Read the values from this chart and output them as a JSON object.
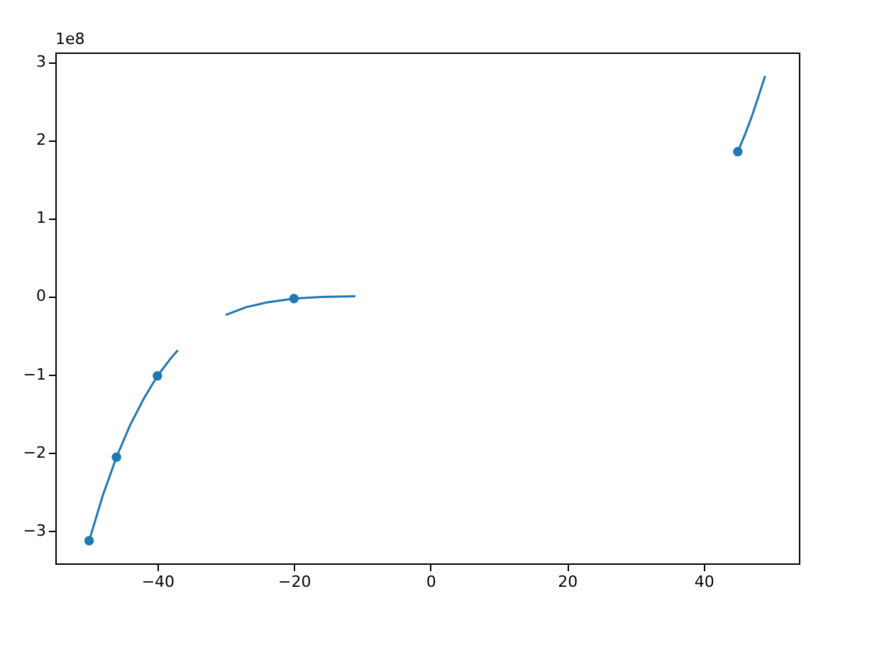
{
  "chart_data": {
    "type": "line",
    "xlim": [
      -54.95,
      53.95
    ],
    "xticks": [
      -40,
      -20,
      0,
      20,
      40
    ],
    "ylim": [
      -3.42,
      3.12
    ],
    "yticks": [
      -3,
      -2,
      -1,
      0,
      1,
      2,
      3
    ],
    "grid": false,
    "annotations": [
      "1e8"
    ],
    "series": [
      {
        "color": "#1f77b4",
        "marker": "none",
        "x": [
          -50,
          -48,
          -46,
          -44,
          -42,
          -40,
          -38,
          -37
        ],
        "values": [
          -3.13,
          -2.55,
          -2.06,
          -1.65,
          -1.31,
          -1.02,
          -0.79,
          -0.69
        ]
      },
      {
        "color": "#1f77b4",
        "marker": "none",
        "x": [
          -30,
          -27,
          -24,
          -20,
          -16,
          -11
        ],
        "values": [
          -0.24,
          -0.14,
          -0.08,
          -0.03,
          -0.01,
          0.0
        ]
      },
      {
        "color": "#1f77b4",
        "marker": "none",
        "x": [
          45,
          46,
          47,
          48,
          49
        ],
        "values": [
          1.85,
          2.06,
          2.29,
          2.55,
          2.82
        ]
      },
      {
        "type": "scatter",
        "color": "#1f77b4",
        "marker": "circle",
        "x": [
          -50,
          -46,
          -40,
          -20,
          45
        ],
        "values": [
          -3.13,
          -2.06,
          -1.02,
          -0.03,
          1.85
        ]
      }
    ]
  }
}
